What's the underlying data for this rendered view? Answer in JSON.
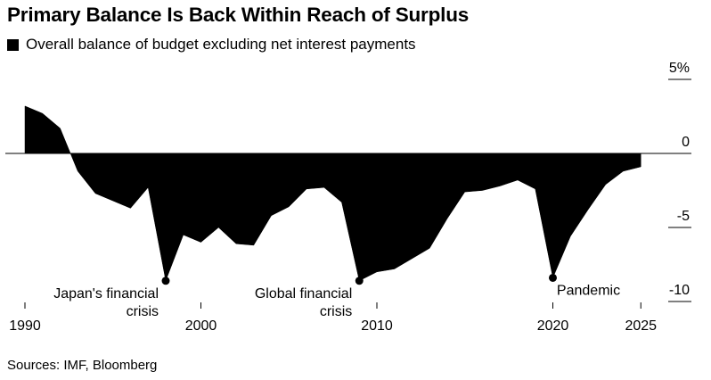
{
  "title": "Primary Balance Is Back Within Reach of Surplus",
  "legend": {
    "label": "Overall balance of budget excluding net interest payments"
  },
  "source": "Sources: IMF, Bloomberg",
  "colors": {
    "area": "#000000",
    "background": "#ffffff",
    "text": "#000000"
  },
  "chart_data": {
    "type": "area",
    "title": "Primary Balance Is Back Within Reach of Surplus",
    "xlabel": "",
    "ylabel": "",
    "xlim": [
      1990,
      2027.5
    ],
    "ylim": [
      -10.5,
      5
    ],
    "grid": false,
    "legend_position": "top-left",
    "x_ticks": [
      1990,
      2000,
      2010,
      2020,
      2025
    ],
    "y_ticks": [
      {
        "value": 5,
        "label": "5%"
      },
      {
        "value": 0,
        "label": "0"
      },
      {
        "value": -5,
        "label": "-5"
      },
      {
        "value": -10,
        "label": "-10"
      }
    ],
    "series": [
      {
        "name": "Overall balance of budget excluding net interest payments",
        "x": [
          1990,
          1991,
          1992,
          1993,
          1994,
          1995,
          1996,
          1997,
          1998,
          1999,
          2000,
          2001,
          2002,
          2003,
          2004,
          2005,
          2006,
          2007,
          2008,
          2009,
          2010,
          2011,
          2012,
          2013,
          2014,
          2015,
          2016,
          2017,
          2018,
          2019,
          2020,
          2021,
          2022,
          2023,
          2024,
          2025
        ],
        "values": [
          3.2,
          2.7,
          1.7,
          -1.2,
          -2.7,
          -3.2,
          -3.7,
          -2.3,
          -8.6,
          -5.5,
          -6.0,
          -5.0,
          -6.1,
          -6.2,
          -4.2,
          -3.6,
          -2.4,
          -2.3,
          -3.3,
          -8.6,
          -8.0,
          -7.8,
          -7.1,
          -6.4,
          -4.4,
          -2.6,
          -2.5,
          -2.2,
          -1.8,
          -2.4,
          -8.4,
          -5.6,
          -3.8,
          -2.1,
          -1.2,
          -0.9
        ]
      }
    ],
    "annotations": [
      {
        "x": 1998,
        "y": -8.6,
        "lines": [
          "Japan's financial",
          "crisis"
        ]
      },
      {
        "x": 2009,
        "y": -8.6,
        "lines": [
          "Global financial",
          "crisis"
        ]
      },
      {
        "x": 2020,
        "y": -8.4,
        "lines": [
          "Pandemic"
        ]
      }
    ]
  }
}
